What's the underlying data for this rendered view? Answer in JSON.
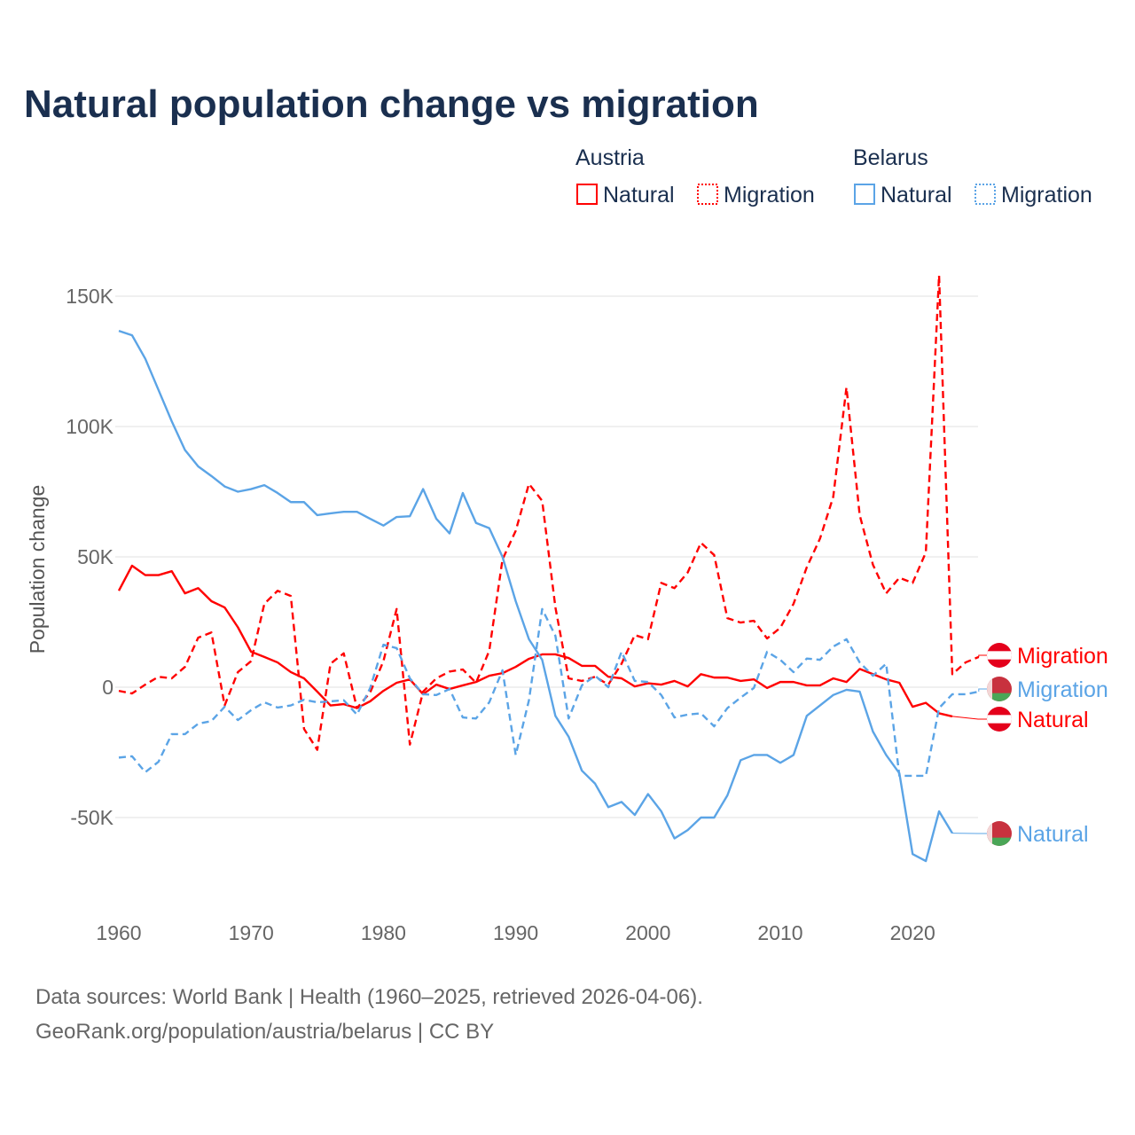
{
  "title": "Natural population change vs migration",
  "legend": {
    "groups": [
      {
        "country": "Austria",
        "items": [
          "Natural",
          "Migration"
        ]
      },
      {
        "country": "Belarus",
        "items": [
          "Natural",
          "Migration"
        ]
      }
    ]
  },
  "footer": {
    "line1": "Data sources: World Bank | Health (1960–2025, retrieved 2026-04-06).",
    "line2": "GeoRank.org/population/austria/belarus | CC BY"
  },
  "colors": {
    "austria": "#ff0000",
    "belarus": "#5ba4e6",
    "grid": "#e6e6e6"
  },
  "chart_data": {
    "type": "line",
    "title": "Natural population change vs migration",
    "xlabel": "",
    "ylabel": "Population change",
    "xlim": [
      1960,
      2025
    ],
    "ylim": [
      -75000,
      160000
    ],
    "x_ticks": [
      1960,
      1970,
      1980,
      1990,
      2000,
      2010,
      2020
    ],
    "x_tick_labels": [
      "1960",
      "1970",
      "1980",
      "1990",
      "2000",
      "2010",
      "2020"
    ],
    "y_ticks": [
      -50000,
      0,
      50000,
      100000,
      150000
    ],
    "y_tick_labels": [
      "-50K",
      "0",
      "50K",
      "100K",
      "150K"
    ],
    "grid": true,
    "legend_position": "top-right",
    "x_start": 1960,
    "series": [
      {
        "name": "Austria Natural",
        "end_label": "Natural",
        "country": "austria",
        "dash": false,
        "values": [
          37,
          46.6,
          43,
          43,
          44.5,
          36,
          38,
          33,
          30.6,
          23,
          13.6,
          11.6,
          9.5,
          5.8,
          3.4,
          -1.7,
          -7,
          -6.5,
          -8,
          -5.4,
          -1.4,
          1.7,
          3,
          -2.7,
          1,
          -0.7,
          0.7,
          2,
          4.4,
          5.4,
          7.8,
          10.9,
          12.6,
          12.6,
          11.2,
          8.2,
          8.2,
          4,
          3.4,
          0.3,
          1.5,
          1,
          2.4,
          0.3,
          5,
          3.7,
          3.7,
          2.4,
          3,
          -0.3,
          2,
          2,
          0.7,
          0.7,
          3.4,
          2,
          7,
          5,
          3,
          1.7,
          -7.5,
          -6,
          -10,
          -11.2
        ]
      },
      {
        "name": "Austria Migration",
        "end_label": "Migration",
        "country": "austria",
        "dash": true,
        "values": [
          -1.4,
          -2.4,
          1,
          4,
          3.4,
          7.8,
          19,
          21,
          -7,
          5.8,
          10,
          32,
          37,
          35,
          -16,
          -24,
          9,
          13,
          -8,
          -2,
          10,
          30,
          -22,
          -1.7,
          3.4,
          6,
          6.8,
          1.7,
          14,
          49,
          60,
          78,
          71.5,
          30.6,
          3.4,
          2.4,
          4,
          1,
          9,
          20,
          18.4,
          40,
          38,
          44,
          55.4,
          50.7,
          26.5,
          24.8,
          25.5,
          18.7,
          22.8,
          32,
          46,
          57,
          73,
          115,
          66,
          47,
          36,
          42,
          40,
          51.7,
          158,
          5,
          9.5,
          11.6
        ]
      },
      {
        "name": "Belarus Natural",
        "end_label": "Natural",
        "country": "belarus",
        "dash": false,
        "values": [
          136.7,
          135,
          126,
          114,
          102,
          91,
          84.7,
          81,
          77,
          75,
          76,
          77.5,
          74.5,
          71,
          71,
          66,
          66.7,
          67.3,
          67.3,
          64.6,
          62,
          65.3,
          65.6,
          76,
          64.6,
          59,
          74.5,
          63,
          61,
          50,
          33,
          18.4,
          10.5,
          -11,
          -19,
          -32,
          -37,
          -46,
          -44,
          -49,
          -41,
          -47.6,
          -58,
          -54.8,
          -50,
          -50,
          -41.5,
          -28,
          -26,
          -26,
          -29,
          -26,
          -11,
          -7,
          -3,
          -1,
          -1.7,
          -17,
          -26,
          -33,
          -64,
          -66.7,
          -47.6,
          -56
        ]
      },
      {
        "name": "Belarus Migration",
        "end_label": "Migration",
        "country": "belarus",
        "dash": true,
        "values": [
          -27,
          -26.5,
          -32.6,
          -28.6,
          -18,
          -18,
          -14,
          -13,
          -7.5,
          -12.6,
          -8.8,
          -5.8,
          -7.8,
          -7,
          -4.8,
          -5.8,
          -5.4,
          -5,
          -10.5,
          -0.3,
          16.3,
          15,
          3.4,
          -2.7,
          -3,
          -0.7,
          -11.6,
          -12,
          -5.8,
          6.5,
          -26,
          -5,
          30,
          19.7,
          -12,
          0.7,
          4.4,
          0,
          13.6,
          2.4,
          2,
          -3,
          -11.6,
          -10.5,
          -10,
          -15,
          -8,
          -4,
          -0.3,
          13.6,
          10.5,
          5.8,
          11,
          10.5,
          15.6,
          18.4,
          9.5,
          4.4,
          9,
          -34,
          -34,
          -34,
          -8,
          -2.7,
          -2.7,
          -1.7
        ]
      }
    ],
    "value_unit": "thousands"
  }
}
